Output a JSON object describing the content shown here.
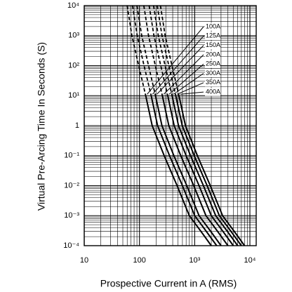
{
  "chart_data": {
    "type": "line",
    "x_label": "Prospective Current in A (RMS)",
    "y_label": "Virtual Pre-Arcing Time In Seconds (S)",
    "log_x": true,
    "log_y": true,
    "grid": true,
    "color": "#000000",
    "xlim": [
      10,
      13000
    ],
    "xticks": [
      10,
      100,
      {
        "value": 1000,
        "label": "10³"
      },
      {
        "value": 10000,
        "label": "10⁴"
      }
    ],
    "ylim": [
      0.0001,
      10000
    ],
    "yticks": [
      {
        "value": 0.0001,
        "label": "10⁻⁴"
      },
      {
        "value": 0.001,
        "label": "10⁻³"
      },
      {
        "value": 0.01,
        "label": "10⁻²"
      },
      {
        "value": 0.1,
        "label": "10⁻¹"
      },
      1,
      {
        "value": 10,
        "label": "10¹"
      },
      {
        "value": 100,
        "label": "10²"
      },
      {
        "value": 1000,
        "label": "10³"
      },
      {
        "value": 10000,
        "label": "10⁴"
      }
    ],
    "series": [
      {
        "name": "100A",
        "dashed": {
          "x": [
            60,
            73,
            97,
            130
          ],
          "values": [
            10000,
            1000,
            100,
            10
          ]
        },
        "x": [
          130,
          170,
          280,
          480,
          800,
          1300,
          2000
        ],
        "values": [
          10,
          1,
          0.1,
          0.01,
          0.001,
          0.0003,
          0.0001
        ]
      },
      {
        "name": "125A",
        "dashed": {
          "x": [
            75,
            91,
            121,
            163
          ],
          "values": [
            10000,
            1000,
            100,
            10
          ]
        },
        "x": [
          163,
          213,
          350,
          600,
          1000,
          1625,
          2500
        ],
        "values": [
          10,
          1,
          0.1,
          0.01,
          0.001,
          0.0003,
          0.0001
        ]
      },
      {
        "name": "150A",
        "dashed": {
          "x": [
            90,
            110,
            146,
            195
          ],
          "values": [
            10000,
            1000,
            100,
            10
          ]
        },
        "x": [
          195,
          255,
          420,
          720,
          1200,
          1950,
          3000
        ],
        "values": [
          10,
          1,
          0.1,
          0.01,
          0.001,
          0.0003,
          0.0001
        ]
      },
      {
        "name": "200A",
        "dashed": {
          "x": [
            120,
            146,
            194,
            260
          ],
          "values": [
            10000,
            1000,
            100,
            10
          ]
        },
        "x": [
          260,
          340,
          560,
          960,
          1600,
          2600,
          4000
        ],
        "values": [
          10,
          1,
          0.1,
          0.01,
          0.001,
          0.0003,
          0.0001
        ]
      },
      {
        "name": "250A",
        "dashed": {
          "x": [
            150,
            183,
            243,
            325
          ],
          "values": [
            10000,
            1000,
            100,
            10
          ]
        },
        "x": [
          325,
          425,
          700,
          1200,
          2000,
          3250,
          5000
        ],
        "values": [
          10,
          1,
          0.1,
          0.01,
          0.001,
          0.0003,
          0.0001
        ]
      },
      {
        "name": "300A",
        "dashed": {
          "x": [
            180,
            219,
            291,
            390
          ],
          "values": [
            10000,
            1000,
            100,
            10
          ]
        },
        "x": [
          390,
          510,
          840,
          1440,
          2400,
          3900,
          6000
        ],
        "values": [
          10,
          1,
          0.1,
          0.01,
          0.001,
          0.0003,
          0.0001
        ]
      },
      {
        "name": "350A",
        "dashed": {
          "x": [
            210,
            256,
            340,
            455
          ],
          "values": [
            10000,
            1000,
            100,
            10
          ]
        },
        "x": [
          455,
          595,
          980,
          1680,
          2800,
          4550,
          7000
        ],
        "values": [
          10,
          1,
          0.1,
          0.01,
          0.001,
          0.0003,
          0.0001
        ]
      },
      {
        "name": "400A",
        "dashed": {
          "x": [
            240,
            292,
            388,
            520
          ],
          "values": [
            10000,
            1000,
            100,
            10
          ]
        },
        "x": [
          520,
          680,
          1120,
          1920,
          3200,
          5200,
          8000
        ],
        "values": [
          10,
          1,
          0.1,
          0.01,
          0.001,
          0.0003,
          0.0001
        ]
      }
    ]
  }
}
